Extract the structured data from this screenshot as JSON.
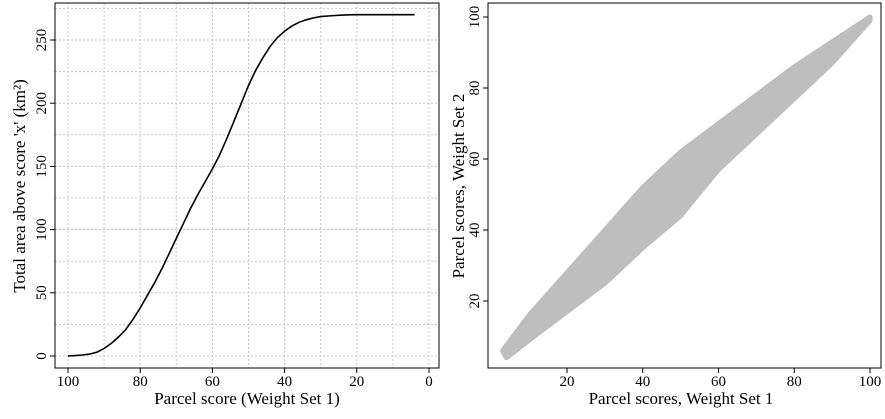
{
  "chart_data": [
    {
      "type": "line",
      "title": "",
      "xlabel": "Parcel score (Weight Set 1)",
      "ylabel": "Total area above score 'x' (km²)",
      "xlim": [
        100,
        0
      ],
      "ylim": [
        0,
        270
      ],
      "x_ticks": [
        "100",
        "80",
        "60",
        "40",
        "20",
        "0"
      ],
      "y_ticks": [
        "0",
        "50",
        "100",
        "150",
        "200",
        "250"
      ],
      "grid": true,
      "line_color": "#000000",
      "series": [
        {
          "x": [
            100,
            98,
            96,
            94,
            92,
            90,
            88,
            86,
            84,
            82,
            80,
            78,
            76,
            74,
            72,
            70,
            68,
            66,
            64,
            62,
            60,
            58,
            56,
            54,
            52,
            50,
            48,
            46,
            44,
            42,
            40,
            38,
            36,
            34,
            32,
            30,
            28,
            26,
            24,
            22,
            20,
            18,
            16,
            14,
            12,
            10,
            8,
            6,
            4
          ],
          "y": [
            0,
            0.3,
            0.8,
            1.5,
            3,
            6,
            10,
            15,
            21,
            29,
            38,
            48,
            58,
            69,
            81,
            93,
            105,
            117,
            128,
            138,
            148,
            159,
            172,
            186,
            200,
            214,
            226,
            236,
            245,
            252,
            257,
            261,
            264,
            266,
            267.5,
            268.5,
            269,
            269.4,
            269.7,
            269.9,
            270,
            270,
            270,
            270,
            270,
            270,
            270,
            270,
            270
          ]
        }
      ]
    },
    {
      "type": "scatter",
      "title": "",
      "xlabel": "Parcel scores, Weight Set 1",
      "ylabel": "Parcel scores, Weight Set 2",
      "xlim": [
        2,
        103
      ],
      "ylim": [
        2,
        103
      ],
      "x_ticks": [
        "20",
        "40",
        "60",
        "80",
        "100"
      ],
      "y_ticks": [
        "20",
        "40",
        "60",
        "80",
        "100"
      ],
      "grid": false,
      "point_color": "#bebebe",
      "band": {
        "upper": [
          [
            3,
            6
          ],
          [
            10,
            16
          ],
          [
            20,
            28
          ],
          [
            30,
            40
          ],
          [
            40,
            52
          ],
          [
            50,
            62
          ],
          [
            60,
            70
          ],
          [
            70,
            78
          ],
          [
            80,
            86
          ],
          [
            90,
            93
          ],
          [
            100,
            100
          ]
        ],
        "lower": [
          [
            100,
            99
          ],
          [
            90,
            87
          ],
          [
            80,
            77
          ],
          [
            70,
            67
          ],
          [
            60,
            57
          ],
          [
            53,
            48
          ],
          [
            50,
            44
          ],
          [
            40,
            35
          ],
          [
            30,
            25
          ],
          [
            20,
            17
          ],
          [
            10,
            9
          ],
          [
            4,
            4
          ]
        ]
      },
      "series": [
        {
          "x": [
            4,
            6,
            8,
            12,
            15,
            18,
            22,
            25,
            28,
            32,
            35,
            38,
            42,
            45,
            48,
            52,
            55,
            58,
            62,
            65,
            68,
            72,
            75,
            78,
            82,
            85,
            88,
            92,
            95,
            98,
            100
          ],
          "y": [
            5,
            7,
            9,
            13,
            17,
            20,
            26,
            27,
            32,
            38,
            40,
            44,
            50,
            52,
            55,
            60,
            62,
            66,
            70,
            72,
            75,
            78,
            81,
            83,
            86,
            88,
            90,
            94,
            96,
            98,
            100
          ]
        }
      ]
    }
  ]
}
